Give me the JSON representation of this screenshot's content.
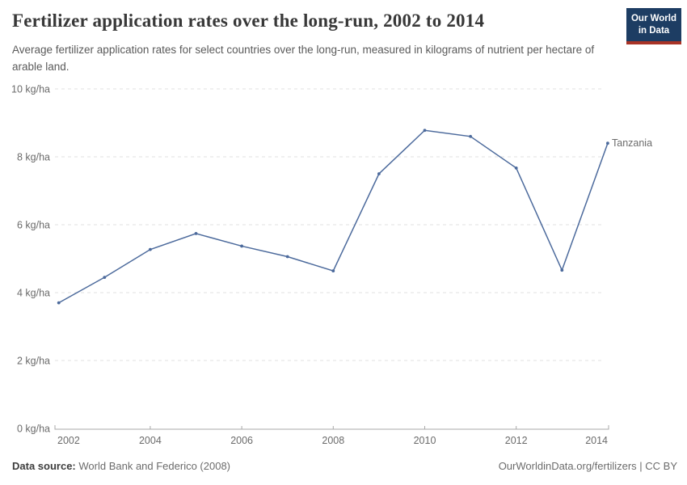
{
  "header": {
    "title": "Fertilizer application rates over the long-run, 2002 to 2014",
    "subtitle": "Average fertilizer application rates for select countries over the long-run, measured in kilograms of nutrient per hectare of arable land.",
    "logo": {
      "line1": "Our World",
      "line2": "in Data",
      "bg_color": "#1d3d63",
      "bar_color": "#a83326"
    }
  },
  "chart_data": {
    "type": "line",
    "title": "Fertilizer application rates over the long-run, 2002 to 2014",
    "xlabel": "",
    "ylabel": "",
    "unit": "kg/ha",
    "x": [
      2002,
      2003,
      2004,
      2005,
      2006,
      2007,
      2008,
      2009,
      2010,
      2011,
      2012,
      2013,
      2014
    ],
    "series": [
      {
        "name": "Tanzania",
        "color": "#4c6a9c",
        "values": [
          3.7,
          4.45,
          5.27,
          5.74,
          5.37,
          5.06,
          4.64,
          7.5,
          8.78,
          8.6,
          7.67,
          4.66,
          8.4
        ]
      }
    ],
    "ylim": [
      0,
      10
    ],
    "yticks": [
      0,
      2,
      4,
      6,
      8,
      10
    ],
    "ytick_suffix": " kg/ha",
    "xticks": [
      2002,
      2004,
      2006,
      2008,
      2010,
      2012,
      2014
    ],
    "grid": "horizontal-dashed",
    "legend": "end-of-line-label",
    "grid_color": "#e2e2e2",
    "axis_color": "#a8a8a8",
    "tick_label_color": "#6b6b6b"
  },
  "footer": {
    "source_label": "Data source:",
    "source_value": "World Bank and Federico (2008)",
    "credit": "OurWorldinData.org/fertilizers | CC BY"
  }
}
